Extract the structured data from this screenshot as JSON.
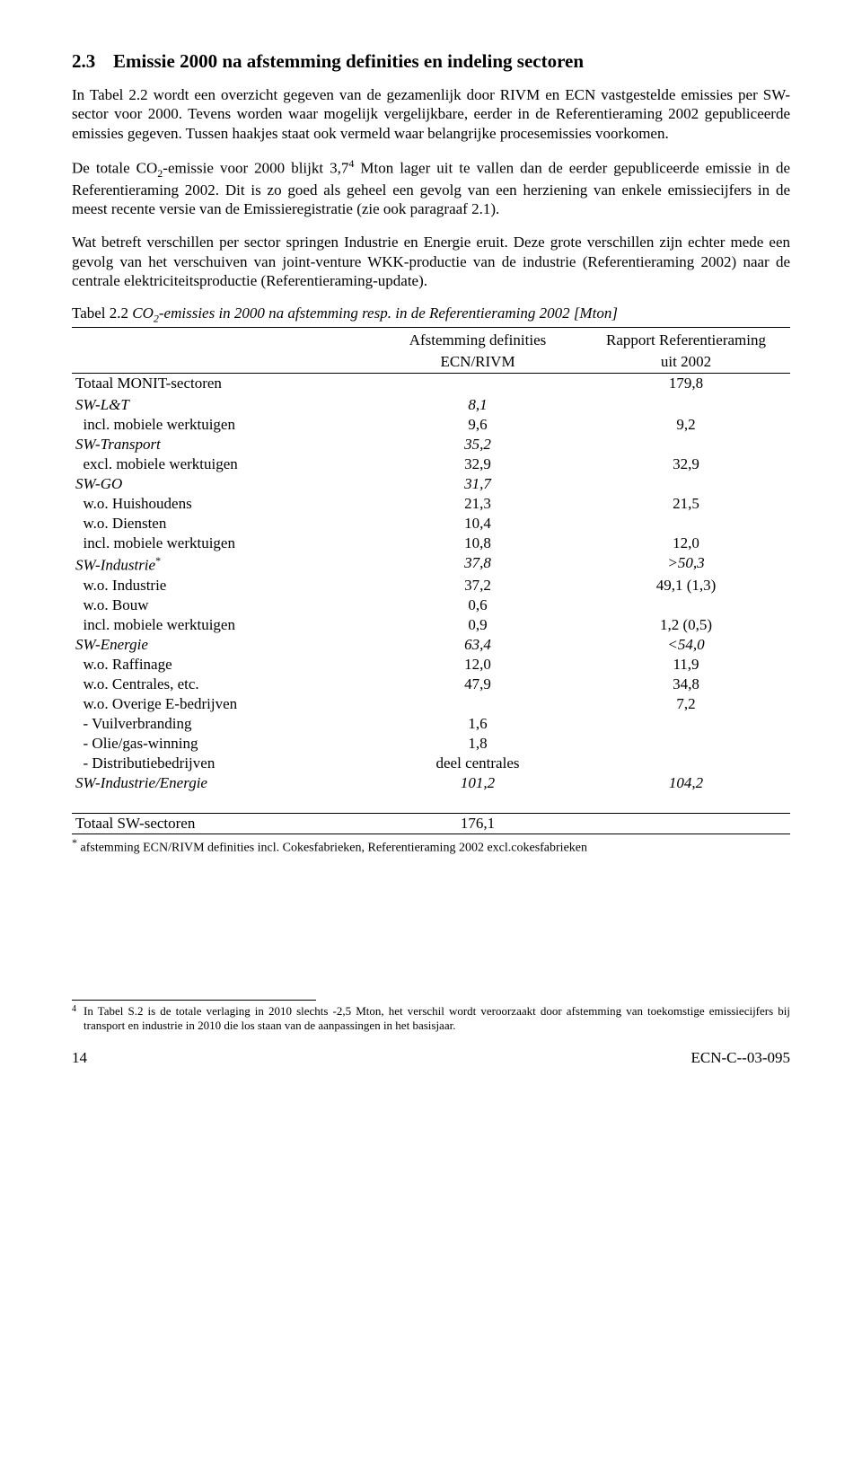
{
  "heading": {
    "number": "2.3",
    "title": "Emissie 2000 na afstemming definities en indeling sectoren"
  },
  "para1": "In Tabel 2.2 wordt een overzicht gegeven van de gezamenlijk door RIVM en ECN vastgestelde emissies per SW-sector voor 2000. Tevens worden waar mogelijk vergelijkbare, eerder in de Referentieraming 2002 gepubliceerde emissies gegeven. Tussen haakjes staat ook vermeld waar belangrijke procesemissies voorkomen.",
  "para2_a": "De totale CO",
  "para2_b": "-emissie voor 2000 blijkt 3,7",
  "para2_c": " Mton lager uit te vallen dan de eerder gepubliceerde emissie in de Referentieraming 2002. Dit is zo goed als geheel een gevolg van een herziening van enkele emissiecijfers in de meest recente versie van de Emissieregistratie (zie ook paragraaf 2.1).",
  "para3": "Wat betreft verschillen per sector springen Industrie en Energie eruit. Deze grote verschillen zijn echter mede een gevolg van het verschuiven van joint-venture WKK-productie van de industrie (Referentieraming 2002) naar de centrale elektriciteitsproductie (Referentieraming-update).",
  "table_caption_a": "Tabel 2.2  ",
  "table_caption_b": "CO",
  "table_caption_c": "-emissies in 2000 na afstemming resp. in de Referentieraming 2002 [Mton]",
  "header_c1a": "Afstemming definities",
  "header_c1b": "ECN/RIVM",
  "header_c2a": "Rapport Referentieraming",
  "header_c2b": "uit 2002",
  "rows": [
    {
      "label": "Totaal MONIT-sectoren",
      "c1": "",
      "c2": "179,8",
      "italic": false
    },
    {
      "label": "",
      "c1": "",
      "c2": "",
      "italic": false
    },
    {
      "label": "SW-L&T",
      "c1": "8,1",
      "c2": "",
      "italic": true
    },
    {
      "label": "  incl. mobiele werktuigen",
      "c1": "9,6",
      "c2": "9,2",
      "italic": false
    },
    {
      "label": "SW-Transport",
      "c1": "35,2",
      "c2": "",
      "italic": true
    },
    {
      "label": "  excl. mobiele werktuigen",
      "c1": "32,9",
      "c2": "32,9",
      "italic": false
    },
    {
      "label": "SW-GO",
      "c1": "31,7",
      "c2": "",
      "italic": true
    },
    {
      "label": "  w.o. Huishoudens",
      "c1": "21,3",
      "c2": "21,5",
      "italic": false
    },
    {
      "label": "  w.o. Diensten",
      "c1": "10,4",
      "c2": "",
      "italic": false
    },
    {
      "label": "  incl. mobiele werktuigen",
      "c1": "10,8",
      "c2": "12,0",
      "italic": false
    },
    {
      "label": "SW-Industrie*",
      "c1": "37,8",
      "c2": ">50,3",
      "italic": true,
      "star": true
    },
    {
      "label": "  w.o. Industrie",
      "c1": "37,2",
      "c2": "49,1 (1,3)",
      "italic": false
    },
    {
      "label": "  w.o. Bouw",
      "c1": "0,6",
      "c2": "",
      "italic": false
    },
    {
      "label": "  incl. mobiele werktuigen",
      "c1": "0,9",
      "c2": "1,2 (0,5)",
      "italic": false
    },
    {
      "label": "SW-Energie",
      "c1": "63,4",
      "c2": "<54,0",
      "italic": true
    },
    {
      "label": "  w.o. Raffinage",
      "c1": "12,0",
      "c2": "11,9",
      "italic": false
    },
    {
      "label": "  w.o. Centrales, etc.",
      "c1": "47,9",
      "c2": "34,8",
      "italic": false
    },
    {
      "label": "  w.o. Overige E-bedrijven",
      "c1": "",
      "c2": "7,2",
      "italic": false
    },
    {
      "label": "  - Vuilverbranding",
      "c1": "1,6",
      "c2": "",
      "italic": false
    },
    {
      "label": "  - Olie/gas-winning",
      "c1": "1,8",
      "c2": "",
      "italic": false
    },
    {
      "label": "  - Distributiebedrijven",
      "c1": "deel centrales",
      "c2": "",
      "italic": false
    },
    {
      "label": "SW-Industrie/Energie",
      "c1": "101,2",
      "c2": "104,2",
      "italic": true
    }
  ],
  "total_row": {
    "label": "Totaal SW-sectoren",
    "c1": "176,1",
    "c2": ""
  },
  "table_footnote": " afstemming ECN/RIVM definities incl. Cokesfabrieken, Referentieraming 2002 excl.cokesfabrieken",
  "table_footnote_marker": "*",
  "footnote4_num": "4",
  "footnote4": "In Tabel S.2 is de totale verlaging in 2010 slechts -2,5 Mton, het verschil wordt veroorzaakt door afstemming van toekomstige emissiecijfers bij transport en industrie in 2010 die los staan van de aanpassingen in het basisjaar.",
  "page_num": "14",
  "doc_id": "ECN-C--03-095"
}
